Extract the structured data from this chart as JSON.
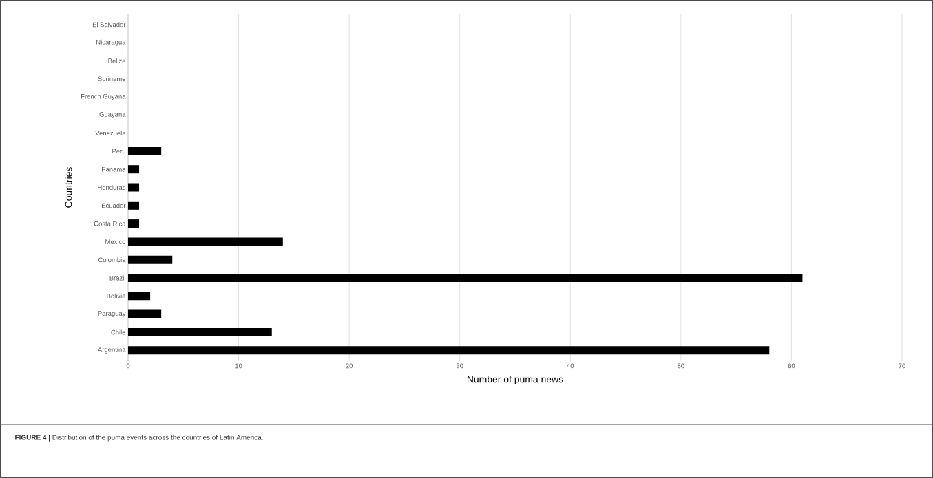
{
  "chart_data": {
    "type": "bar",
    "orientation": "horizontal",
    "xlabel": "Number of puma news",
    "ylabel": "Countries",
    "categories": [
      "El Salvador",
      "Nicaragua",
      "Belize",
      "Suriname",
      "French Guyana",
      "Guayana",
      "Venezuela",
      "Peru",
      "Panama",
      "Honduras",
      "Ecuador",
      "Costa Rica",
      "Mexico",
      "Colombia",
      "Brazil",
      "Bolivia",
      "Paraguay",
      "Chile",
      "Argentina"
    ],
    "values": [
      0,
      0,
      0,
      0,
      0,
      0,
      0,
      3,
      1,
      1,
      1,
      1,
      14,
      4,
      61,
      2,
      3,
      13,
      58
    ],
    "color": "#000000",
    "xlim": [
      0,
      70
    ],
    "xticks": [
      0,
      10,
      20,
      30,
      40,
      50,
      60,
      70
    ],
    "grid": "x",
    "annotations": [
      "**FIGURE 4 |** Distribution of the puma events across the countries of Latin America."
    ]
  }
}
